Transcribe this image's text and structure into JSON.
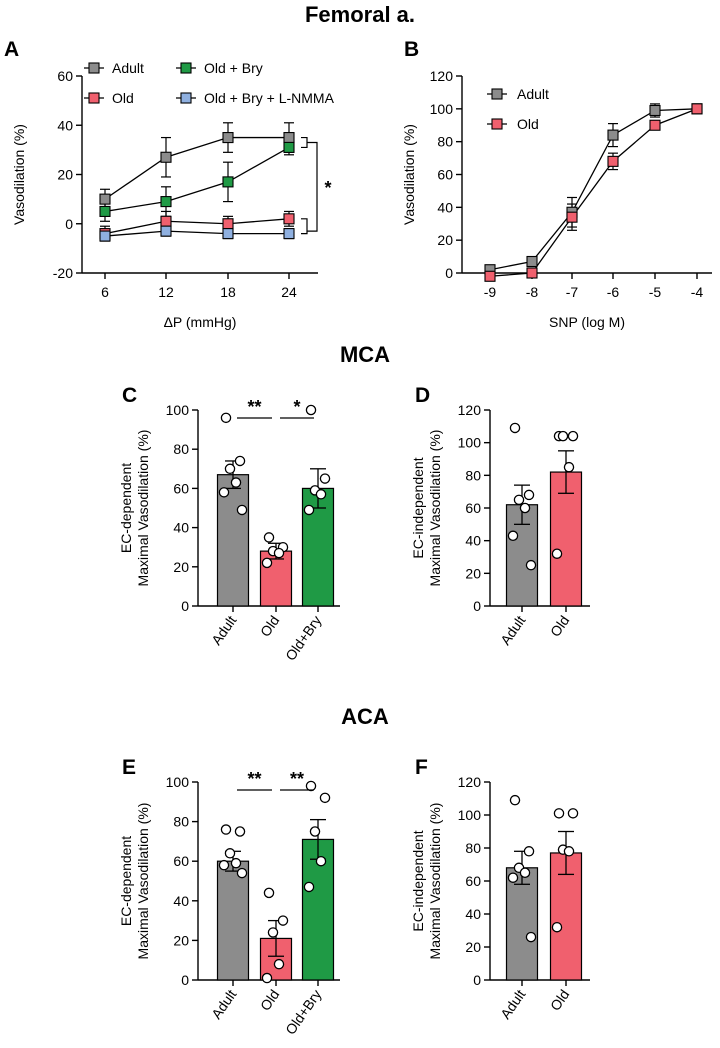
{
  "figure_title": "Femoral a.",
  "section_titles": [
    "MCA",
    "ACA"
  ],
  "colors": {
    "adult": "#8c8c8c",
    "old": "#f0606e",
    "old_bry": "#1f9a45",
    "old_bry_lnmma": "#8fb0e0",
    "line": "#000000"
  },
  "chart_data": [
    {
      "id": "A",
      "type": "line",
      "xlabel": "ΔP (mmHg)",
      "ylabel": "Vasodilation (%)",
      "categories": [
        "6",
        "12",
        "18",
        "24"
      ],
      "ylim": [
        -20,
        60
      ],
      "yticks": [
        -20,
        0,
        20,
        40,
        60
      ],
      "series": [
        {
          "name": "Adult",
          "color_key": "adult",
          "values": [
            10,
            27,
            35,
            35
          ],
          "err": [
            4,
            8,
            6,
            6
          ]
        },
        {
          "name": "Old + Bry",
          "color_key": "old_bry",
          "values": [
            5,
            9,
            17,
            31
          ],
          "err": [
            4,
            6,
            8,
            3
          ]
        },
        {
          "name": "Old",
          "color_key": "old",
          "values": [
            -4,
            1,
            0,
            2
          ],
          "err": [
            3,
            4,
            3,
            3
          ]
        },
        {
          "name": "Old + Bry + L-NMMA",
          "color_key": "old_bry_lnmma",
          "values": [
            -5,
            -3,
            -4,
            -4
          ],
          "err": [
            2,
            2,
            2,
            2
          ]
        }
      ],
      "annotations": [
        "*"
      ]
    },
    {
      "id": "B",
      "type": "line",
      "xlabel": "SNP (log M)",
      "ylabel": "Vasodilation (%)",
      "categories": [
        "-9",
        "-8",
        "-7",
        "-6",
        "-5",
        "-4"
      ],
      "ylim": [
        0,
        120
      ],
      "yticks": [
        0,
        20,
        40,
        60,
        80,
        100,
        120
      ],
      "series": [
        {
          "name": "Adult",
          "color_key": "adult",
          "values": [
            2,
            7,
            37,
            84,
            99,
            100
          ],
          "err": [
            2,
            3,
            9,
            7,
            4,
            1
          ]
        },
        {
          "name": "Old",
          "color_key": "old",
          "values": [
            -2,
            0,
            34,
            68,
            90,
            100
          ],
          "err": [
            1,
            2,
            8,
            5,
            2,
            1
          ]
        }
      ]
    },
    {
      "id": "C",
      "type": "bar",
      "ylabel": "EC-dependent Maximal Vasodilation (%)",
      "categories": [
        "Adult",
        "Old",
        "Old+Bry"
      ],
      "color_keys": [
        "adult",
        "old",
        "old_bry"
      ],
      "values": [
        67,
        28,
        60
      ],
      "err": [
        7,
        4,
        10
      ],
      "points": [
        [
          96,
          74,
          70,
          63,
          58,
          49
        ],
        [
          35,
          30,
          28,
          27,
          22
        ],
        [
          100,
          65,
          59,
          57,
          49
        ]
      ],
      "ylim": [
        0,
        100
      ],
      "yticks": [
        0,
        20,
        40,
        60,
        80,
        100
      ],
      "sig": [
        {
          "from": 0,
          "to": 1,
          "label": "**"
        },
        {
          "from": 1,
          "to": 2,
          "label": "*"
        }
      ]
    },
    {
      "id": "D",
      "type": "bar",
      "ylabel": "EC-independent Maximal Vasodilation (%)",
      "categories": [
        "Adult",
        "Old"
      ],
      "color_keys": [
        "adult",
        "old"
      ],
      "values": [
        62,
        82
      ],
      "err": [
        12,
        13
      ],
      "points": [
        [
          109,
          68,
          65,
          60,
          43,
          25
        ],
        [
          104,
          104,
          104,
          85,
          32
        ]
      ],
      "ylim": [
        0,
        120
      ],
      "yticks": [
        0,
        20,
        40,
        60,
        80,
        100,
        120
      ]
    },
    {
      "id": "E",
      "type": "bar",
      "ylabel": "EC-dependent Maximal Vasodilation (%)",
      "categories": [
        "Adult",
        "Old",
        "Old+Bry"
      ],
      "color_keys": [
        "adult",
        "old",
        "old_bry"
      ],
      "values": [
        60,
        21,
        71
      ],
      "err": [
        5,
        9,
        10
      ],
      "points": [
        [
          76,
          75,
          64,
          59,
          58,
          54
        ],
        [
          44,
          30,
          24,
          8,
          1
        ],
        [
          98,
          92,
          75,
          60,
          47
        ]
      ],
      "ylim": [
        0,
        100
      ],
      "yticks": [
        0,
        20,
        40,
        60,
        80,
        100
      ],
      "sig": [
        {
          "from": 0,
          "to": 1,
          "label": "**"
        },
        {
          "from": 1,
          "to": 2,
          "label": "**"
        }
      ]
    },
    {
      "id": "F",
      "type": "bar",
      "ylabel": "EC-independent Maximal Vasodilation (%)",
      "categories": [
        "Adult",
        "Old"
      ],
      "color_keys": [
        "adult",
        "old"
      ],
      "values": [
        68,
        77
      ],
      "err": [
        10,
        13
      ],
      "points": [
        [
          109,
          78,
          68,
          65,
          62,
          26
        ],
        [
          101,
          101,
          79,
          78,
          32
        ]
      ],
      "ylim": [
        0,
        120
      ],
      "yticks": [
        0,
        20,
        40,
        60,
        80,
        100,
        120
      ]
    }
  ]
}
